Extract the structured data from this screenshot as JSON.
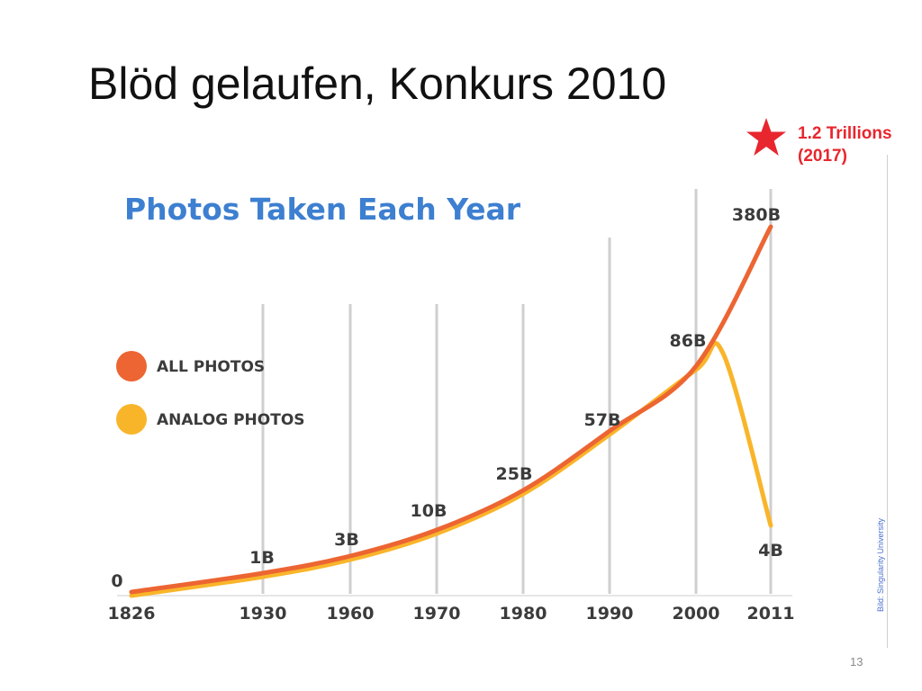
{
  "slide": {
    "title": "Blöd gelaufen, Konkurs 2010",
    "page_number": "13",
    "credit": "Bild: Singularity University"
  },
  "annotation": {
    "icon": "star-icon",
    "color": "#e8262e",
    "line1": "1.2 Trillions",
    "line2": "(2017)"
  },
  "chart_data": {
    "type": "line",
    "title": "Photos Taken Each Year",
    "xlabel": "",
    "ylabel": "",
    "x_ticks": [
      "1826",
      "1930",
      "1960",
      "1970",
      "1980",
      "1990",
      "2000",
      "2011"
    ],
    "grid": "vertical",
    "legend_position": "left",
    "series": [
      {
        "name": "ALL PHOTOS",
        "color": "#ec6532",
        "x": [
          "1826",
          "1930",
          "1960",
          "1970",
          "1980",
          "1990",
          "2000",
          "2011"
        ],
        "values": [
          0,
          1,
          3,
          10,
          25,
          57,
          86,
          380
        ],
        "unit": "B"
      },
      {
        "name": "ANALOG PHOTOS",
        "color": "#f9b52a",
        "x": [
          "1826",
          "1930",
          "1960",
          "1970",
          "1980",
          "1990",
          "2000",
          "2004",
          "2011"
        ],
        "values": [
          0,
          1,
          3,
          10,
          25,
          57,
          86,
          90,
          4
        ],
        "unit": "B"
      }
    ],
    "data_labels": [
      "0",
      "1B",
      "3B",
      "10B",
      "25B",
      "57B",
      "86B",
      "380B",
      "4B"
    ]
  }
}
